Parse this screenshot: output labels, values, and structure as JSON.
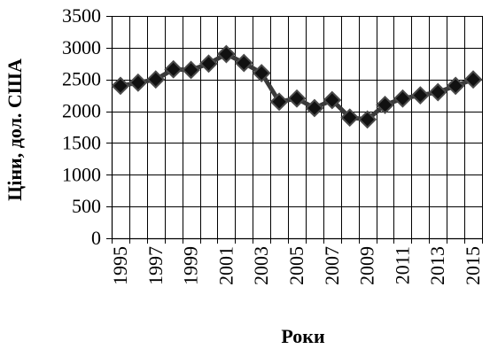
{
  "chart_data": {
    "type": "line",
    "title": "",
    "xlabel": "Роки",
    "ylabel": "Ціни,  дол. США",
    "x": [
      1995,
      1996,
      1997,
      1998,
      1999,
      2000,
      2001,
      2002,
      2003,
      2004,
      2005,
      2006,
      2007,
      2008,
      2009,
      2010,
      2011,
      2012,
      2013,
      2014,
      2015
    ],
    "x_tick_labels": [
      "1995",
      "1997",
      "1999",
      "2001",
      "2003",
      "2005",
      "2007",
      "2009",
      "2011",
      "2013",
      "2015"
    ],
    "y_tick_labels": [
      "0",
      "500",
      "1000",
      "1500",
      "2000",
      "2500",
      "3000",
      "3500"
    ],
    "ylim": [
      0,
      3500
    ],
    "y_tick_step": 500,
    "grid": true,
    "legend": "none",
    "series": [
      {
        "values": [
          2400,
          2450,
          2500,
          2660,
          2650,
          2750,
          2900,
          2760,
          2600,
          2150,
          2200,
          2050,
          2175,
          1900,
          1870,
          2100,
          2200,
          2250,
          2300,
          2400,
          2500
        ]
      }
    ],
    "colors": {
      "line": "#3a3a3a",
      "marker_fill": "#111111",
      "marker_stroke": "#4a4a4a",
      "grid": "#000000"
    }
  }
}
